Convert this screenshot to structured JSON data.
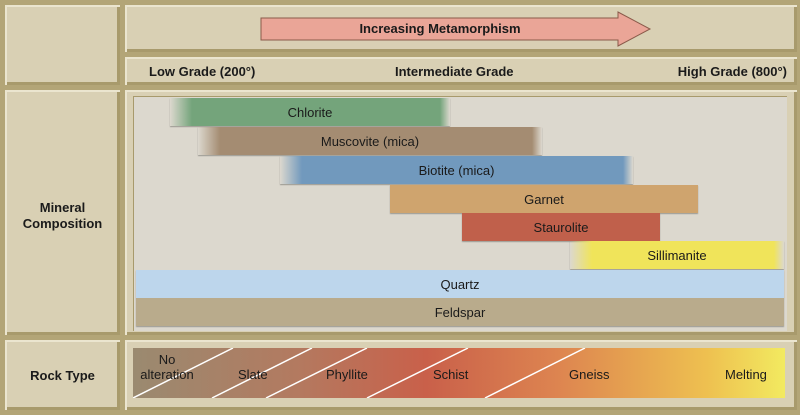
{
  "arrow": {
    "label": "Increasing Metamorphism",
    "color": "#eaa597"
  },
  "grades": {
    "low": "Low Grade (200°)",
    "intermediate": "Intermediate Grade",
    "high": "High Grade (800°)"
  },
  "rows": {
    "mineral": "Mineral Composition",
    "rock": "Rock Type"
  },
  "minerals": [
    {
      "name": "Chlorite",
      "color": "#74a47b"
    },
    {
      "name": "Muscovite (mica)",
      "color": "#a48c72"
    },
    {
      "name": "Biotite (mica)",
      "color": "#7199bd"
    },
    {
      "name": "Garnet",
      "color": "#cfa46e"
    },
    {
      "name": "Staurolite",
      "color": "#c0604b"
    },
    {
      "name": "Sillimanite",
      "color": "#f0e45a"
    },
    {
      "name": "Quartz",
      "color": "#bdd6ec"
    },
    {
      "name": "Feldspar",
      "color": "#b9ab8c"
    }
  ],
  "rock_types": [
    "No alteration",
    "Slate",
    "Phyllite",
    "Schist",
    "Gneiss",
    "Melting"
  ]
}
